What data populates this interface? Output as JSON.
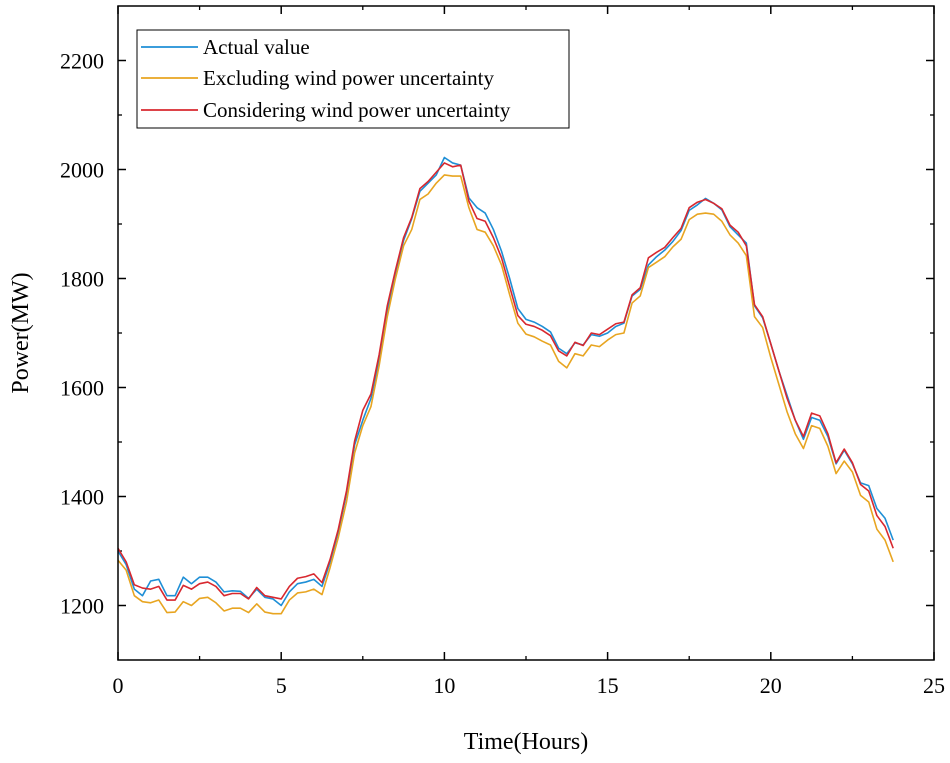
{
  "chart_data": {
    "type": "line",
    "title": "",
    "xlabel": "Time(Hours)",
    "ylabel": "Power(MW)",
    "xlim": [
      0,
      25
    ],
    "ylim": [
      1100,
      2300
    ],
    "xticks": [
      0,
      5,
      10,
      15,
      20,
      25
    ],
    "yticks": [
      1200,
      1400,
      1600,
      1800,
      2000,
      2200
    ],
    "grid": false,
    "legend_position": "top-left",
    "x": [
      0,
      0.25,
      0.5,
      0.75,
      1,
      1.25,
      1.5,
      1.75,
      2,
      2.25,
      2.5,
      2.75,
      3,
      3.25,
      3.5,
      3.75,
      4,
      4.25,
      4.5,
      4.75,
      5,
      5.25,
      5.5,
      5.75,
      6,
      6.25,
      6.5,
      6.75,
      7,
      7.25,
      7.5,
      7.75,
      8,
      8.25,
      8.5,
      8.75,
      9,
      9.25,
      9.5,
      9.75,
      10,
      10.25,
      10.5,
      10.75,
      11,
      11.25,
      11.5,
      11.75,
      12,
      12.25,
      12.5,
      12.75,
      13,
      13.25,
      13.5,
      13.75,
      14,
      14.25,
      14.5,
      14.75,
      15,
      15.25,
      15.5,
      15.75,
      16,
      16.25,
      16.5,
      16.75,
      17,
      17.25,
      17.5,
      17.75,
      18,
      18.25,
      18.5,
      18.75,
      19,
      19.25,
      19.5,
      19.75,
      20,
      20.25,
      20.5,
      20.75,
      21,
      21.25,
      21.5,
      21.75,
      22,
      22.25,
      22.5,
      22.75,
      23,
      23.25,
      23.5,
      23.75
    ],
    "series": [
      {
        "name": "Actual value",
        "color": "#1f8fd6",
        "values": [
          1300,
          1275,
          1230,
          1218,
          1245,
          1248,
          1218,
          1218,
          1252,
          1240,
          1252,
          1252,
          1243,
          1225,
          1227,
          1226,
          1213,
          1230,
          1215,
          1212,
          1200,
          1225,
          1240,
          1243,
          1248,
          1235,
          1280,
          1335,
          1405,
          1495,
          1540,
          1580,
          1650,
          1740,
          1810,
          1870,
          1910,
          1960,
          1975,
          1990,
          2022,
          2012,
          2008,
          1948,
          1930,
          1920,
          1890,
          1850,
          1800,
          1745,
          1725,
          1720,
          1712,
          1702,
          1672,
          1662,
          1682,
          1678,
          1697,
          1694,
          1700,
          1712,
          1718,
          1768,
          1780,
          1825,
          1840,
          1852,
          1868,
          1888,
          1925,
          1935,
          1947,
          1938,
          1926,
          1895,
          1880,
          1865,
          1750,
          1728,
          1680,
          1630,
          1585,
          1540,
          1505,
          1545,
          1540,
          1510,
          1460,
          1485,
          1460,
          1425,
          1420,
          1378,
          1360,
          1320
        ]
      },
      {
        "name": "Excluding wind power uncertainty",
        "color": "#e8a521",
        "values": [
          1283,
          1265,
          1218,
          1207,
          1205,
          1210,
          1187,
          1188,
          1207,
          1200,
          1213,
          1215,
          1205,
          1190,
          1195,
          1195,
          1187,
          1203,
          1188,
          1185,
          1185,
          1210,
          1223,
          1225,
          1230,
          1220,
          1270,
          1325,
          1390,
          1480,
          1530,
          1565,
          1640,
          1730,
          1800,
          1860,
          1890,
          1945,
          1955,
          1975,
          1990,
          1988,
          1988,
          1930,
          1890,
          1885,
          1860,
          1825,
          1770,
          1718,
          1698,
          1693,
          1685,
          1678,
          1648,
          1636,
          1662,
          1658,
          1678,
          1675,
          1687,
          1697,
          1700,
          1755,
          1768,
          1820,
          1830,
          1840,
          1858,
          1872,
          1908,
          1918,
          1920,
          1918,
          1905,
          1880,
          1865,
          1842,
          1730,
          1710,
          1655,
          1605,
          1555,
          1515,
          1488,
          1530,
          1525,
          1492,
          1442,
          1465,
          1445,
          1402,
          1390,
          1340,
          1320,
          1280
        ]
      },
      {
        "name": "Considering wind power uncertainty",
        "color": "#d8282f",
        "values": [
          1305,
          1280,
          1238,
          1232,
          1230,
          1235,
          1210,
          1210,
          1237,
          1230,
          1240,
          1243,
          1235,
          1218,
          1222,
          1222,
          1212,
          1233,
          1218,
          1215,
          1212,
          1235,
          1250,
          1253,
          1258,
          1242,
          1285,
          1340,
          1410,
          1502,
          1558,
          1588,
          1660,
          1750,
          1815,
          1875,
          1912,
          1965,
          1978,
          1995,
          2012,
          2005,
          2008,
          1942,
          1910,
          1905,
          1875,
          1838,
          1785,
          1732,
          1716,
          1712,
          1705,
          1695,
          1667,
          1658,
          1683,
          1677,
          1700,
          1697,
          1707,
          1717,
          1720,
          1770,
          1783,
          1838,
          1848,
          1857,
          1875,
          1892,
          1930,
          1940,
          1945,
          1938,
          1928,
          1898,
          1885,
          1860,
          1752,
          1730,
          1680,
          1630,
          1580,
          1540,
          1510,
          1553,
          1548,
          1515,
          1462,
          1487,
          1462,
          1422,
          1410,
          1365,
          1345,
          1305
        ]
      }
    ]
  }
}
